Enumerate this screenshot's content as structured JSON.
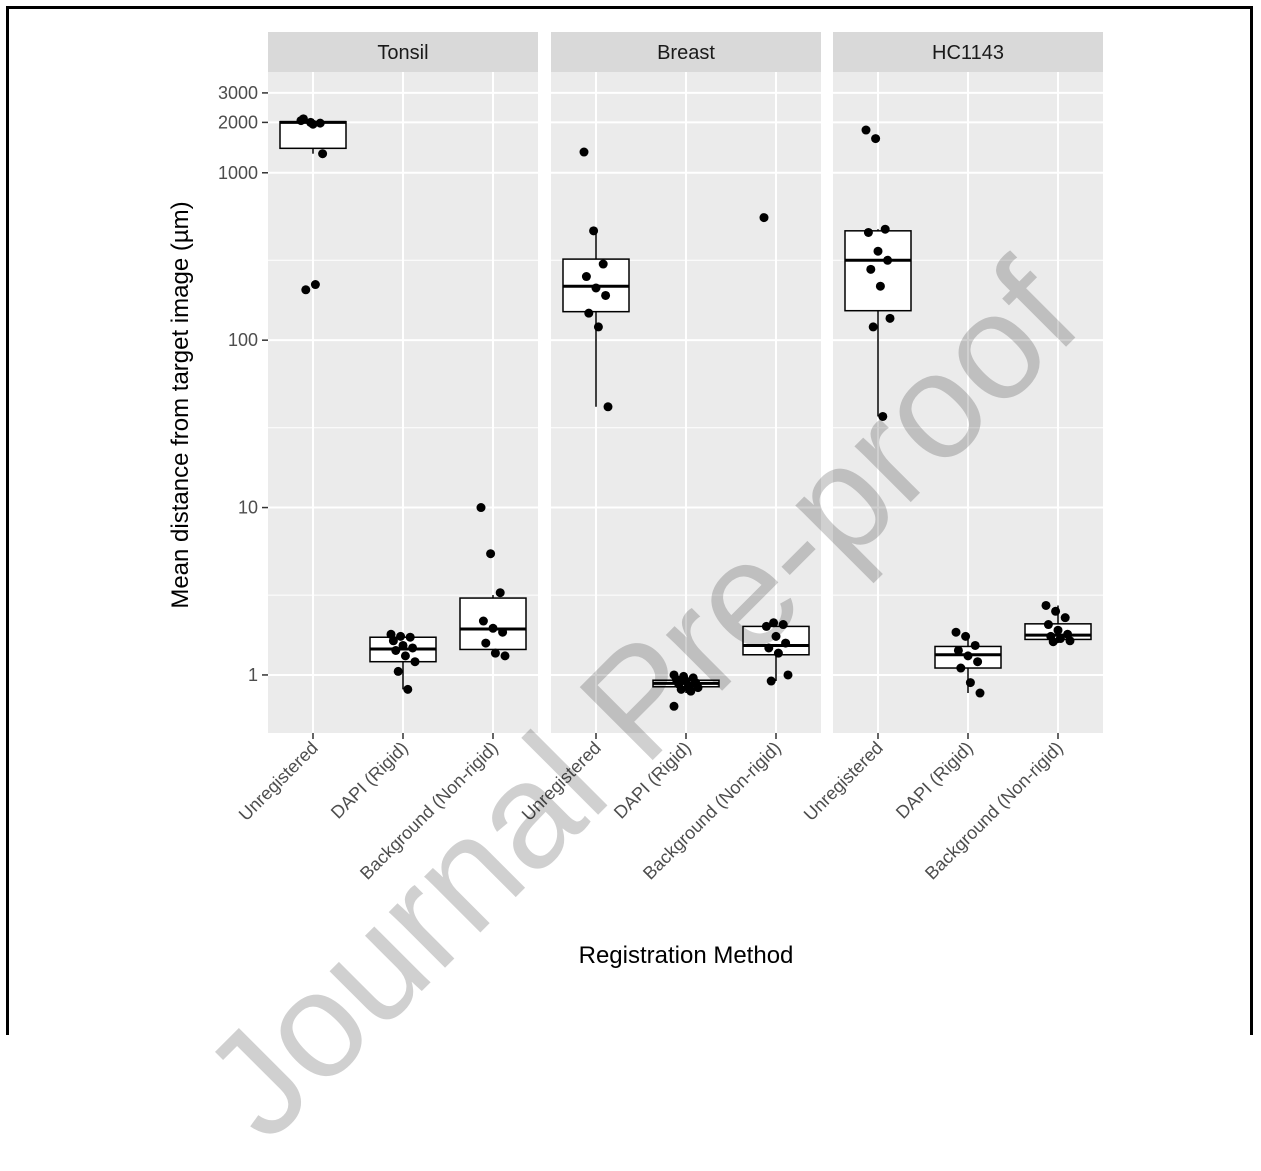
{
  "chart_data": {
    "type": "boxplot",
    "ylabel": "Mean distance from target image (µm)",
    "xlabel": "Registration Method",
    "y_scale": "log10",
    "ylim": [
      0.45,
      4000
    ],
    "y_ticks": [
      1,
      10,
      100,
      1000,
      2000,
      3000
    ],
    "y_tick_labels": [
      "1",
      "10",
      "100",
      "1000",
      "2000",
      "3000"
    ],
    "categories": [
      "Unregistered",
      "DAPI (Rigid)",
      "Background (Non-rigid)"
    ],
    "colors": {
      "panel_bg": "#ebebeb",
      "strip_bg": "#d9d9d9",
      "grid": "#ffffff",
      "box_fill": "#ffffff",
      "box_line": "#000000",
      "point": "#000000",
      "axis_text": "#4d4d4d"
    },
    "panels": [
      {
        "name": "Tonsil",
        "groups": [
          {
            "category": "Unregistered",
            "q1": 1400,
            "median": 2000,
            "q3": 2020,
            "whisker_low": 1300,
            "whisker_high": 2100,
            "points": [
              2050,
              2000,
              1980,
              2100,
              1950,
              1300,
              200,
              215
            ]
          },
          {
            "category": "DAPI (Rigid)",
            "q1": 1.2,
            "median": 1.43,
            "q3": 1.68,
            "whisker_low": 0.82,
            "whisker_high": 1.75,
            "points": [
              1.75,
              1.7,
              1.68,
              1.6,
              1.5,
              1.45,
              1.4,
              1.3,
              1.2,
              1.05,
              0.82
            ]
          },
          {
            "category": "Background (Non-rigid)",
            "q1": 1.42,
            "median": 1.88,
            "q3": 2.88,
            "whisker_low": 1.3,
            "whisker_high": 3.0,
            "points": [
              10,
              5.3,
              3.1,
              2.1,
              1.9,
              1.8,
              1.55,
              1.35,
              1.3
            ]
          }
        ]
      },
      {
        "name": "Breast",
        "groups": [
          {
            "category": "Unregistered",
            "q1": 148,
            "median": 210,
            "q3": 305,
            "whisker_low": 40,
            "whisker_high": 450,
            "points": [
              1330,
              450,
              285,
              240,
              205,
              185,
              145,
              120,
              40
            ]
          },
          {
            "category": "DAPI (Rigid)",
            "q1": 0.85,
            "median": 0.89,
            "q3": 0.93,
            "whisker_low": 0.78,
            "whisker_high": 1.0,
            "points": [
              1.0,
              0.98,
              0.96,
              0.94,
              0.92,
              0.9,
              0.88,
              0.86,
              0.84,
              0.82,
              0.8,
              0.65
            ]
          },
          {
            "category": "Background (Non-rigid)",
            "q1": 1.32,
            "median": 1.5,
            "q3": 1.95,
            "whisker_low": 0.92,
            "whisker_high": 2.05,
            "points": [
              540,
              2.05,
              2.0,
              1.95,
              1.7,
              1.55,
              1.45,
              1.35,
              1.0,
              0.92
            ]
          }
        ]
      },
      {
        "name": "HC1143",
        "groups": [
          {
            "category": "Unregistered",
            "q1": 150,
            "median": 300,
            "q3": 450,
            "whisker_low": 35,
            "whisker_high": 460,
            "points": [
              1800,
              1600,
              460,
              440,
              340,
              300,
              265,
              210,
              135,
              120,
              35
            ]
          },
          {
            "category": "DAPI (Rigid)",
            "q1": 1.1,
            "median": 1.32,
            "q3": 1.48,
            "whisker_low": 0.78,
            "whisker_high": 1.72,
            "points": [
              1.8,
              1.7,
              1.5,
              1.4,
              1.3,
              1.2,
              1.1,
              0.9,
              0.78
            ]
          },
          {
            "category": "Background (Non-rigid)",
            "q1": 1.63,
            "median": 1.73,
            "q3": 2.02,
            "whisker_low": 1.55,
            "whisker_high": 2.6,
            "points": [
              2.6,
              2.4,
              2.2,
              2.0,
              1.85,
              1.75,
              1.7,
              1.65,
              1.6,
              1.58
            ]
          }
        ]
      }
    ],
    "watermark": "Journal Pre-proof"
  }
}
